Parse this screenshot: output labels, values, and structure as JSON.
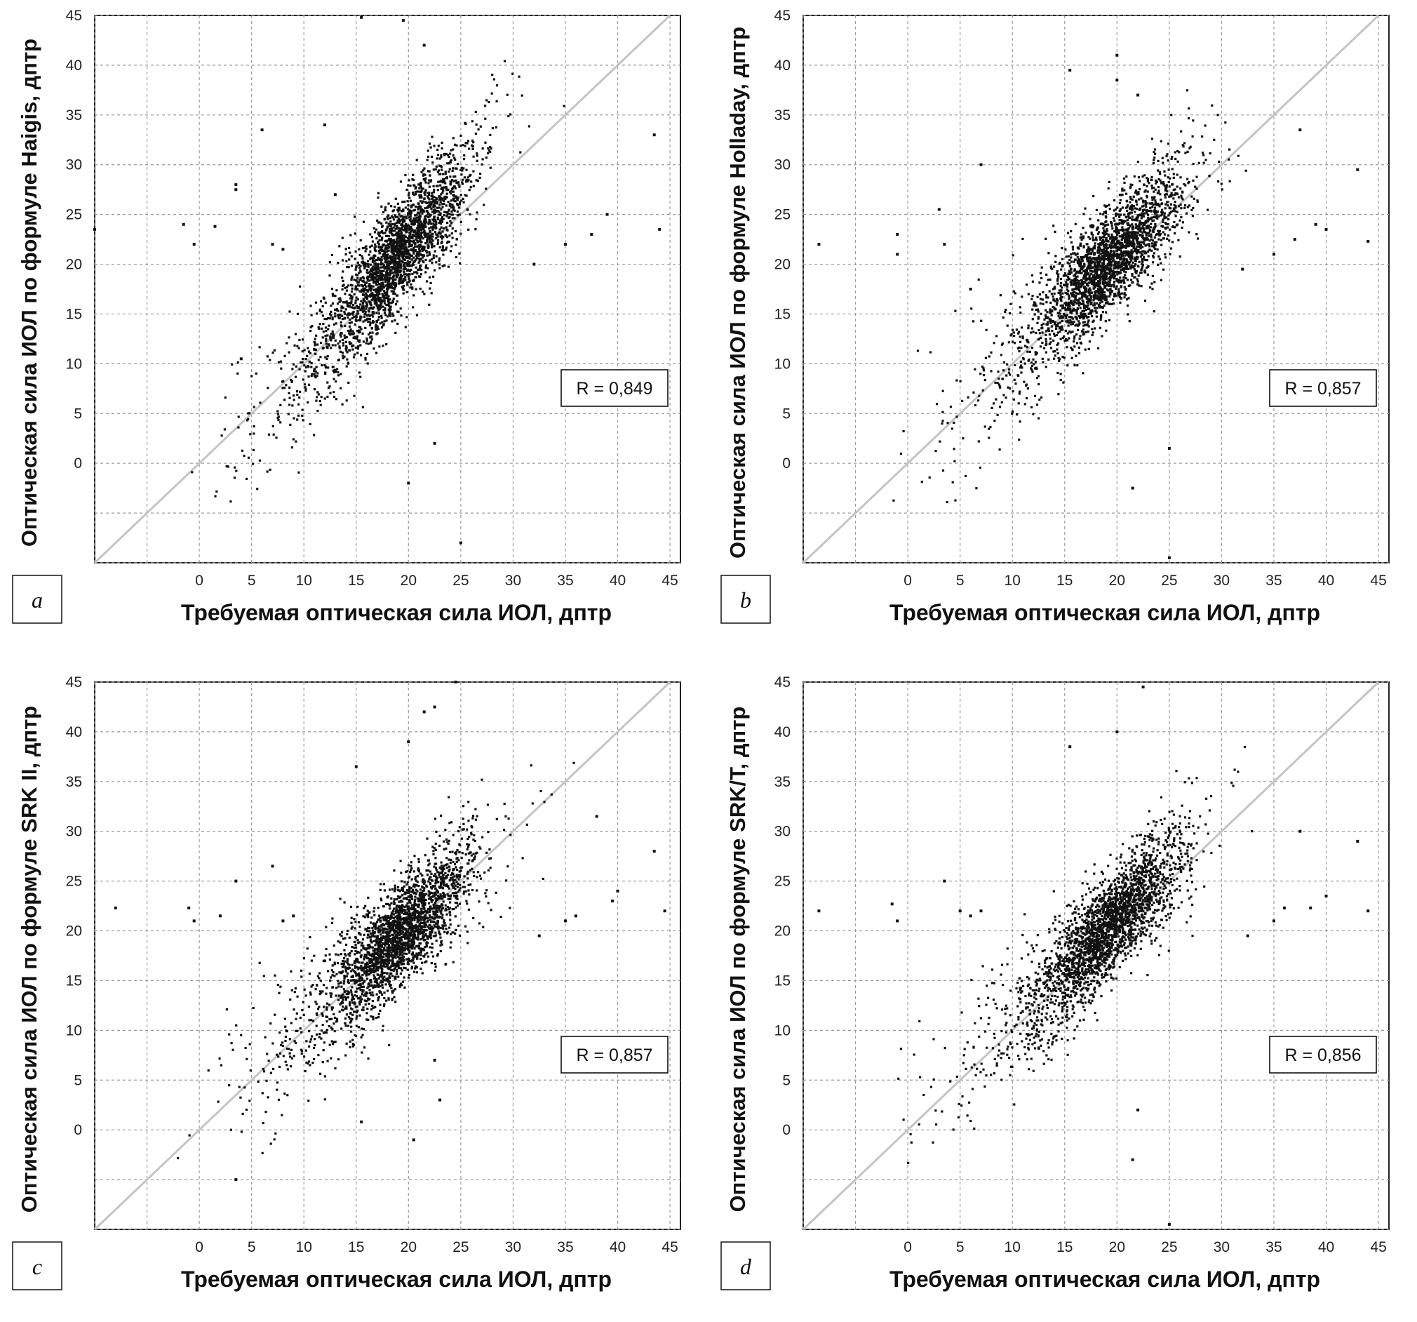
{
  "shared": {
    "xlabel": "Требуемая оптическая сила ИОЛ, дптр",
    "x_ticks": [
      "0",
      "5",
      "10",
      "15",
      "20",
      "25",
      "30",
      "35",
      "40",
      "45"
    ],
    "y_ticks": [
      "0",
      "5",
      "10",
      "15",
      "20",
      "25",
      "30",
      "35",
      "40",
      "45"
    ]
  },
  "chart_data": [
    {
      "type": "scatter",
      "panel_label": "a",
      "ylabel": "Оптическая сила ИОЛ по формуле Haigis, дптр",
      "xlabel": "Требуемая оптическая сила ИОЛ, дптр",
      "annotation": "R = 0,849",
      "r": 0.849,
      "xlim": [
        -10,
        46
      ],
      "ylim": [
        -10,
        45
      ],
      "identity_line": true,
      "grid": true,
      "cloud": {
        "x_center": 19.5,
        "y_center": 21.5,
        "slope": 1.25,
        "approx_points": 6000
      },
      "outliers": [
        [
          -1.5,
          24
        ],
        [
          -10,
          23.5
        ],
        [
          -0.5,
          22
        ],
        [
          1.5,
          23.8
        ],
        [
          3.5,
          28
        ],
        [
          3.5,
          27.5
        ],
        [
          4,
          10.5
        ],
        [
          6,
          33.5
        ],
        [
          7,
          22
        ],
        [
          8,
          21.5
        ],
        [
          12,
          34
        ],
        [
          13,
          27
        ],
        [
          15.5,
          44.8
        ],
        [
          19.5,
          44.5
        ],
        [
          21.5,
          42
        ],
        [
          22.5,
          2
        ],
        [
          20,
          -2
        ],
        [
          25,
          -8
        ],
        [
          35,
          22
        ],
        [
          37.5,
          23
        ],
        [
          39,
          25
        ],
        [
          43.5,
          33
        ],
        [
          44,
          23.5
        ],
        [
          32,
          20
        ]
      ]
    },
    {
      "type": "scatter",
      "panel_label": "b",
      "ylabel": "Оптическая сила ИОЛ по формуле Holladay, дптр",
      "xlabel": "Требуемая оптическая сила ИОЛ, дптр",
      "annotation": "R = 0,857",
      "r": 0.857,
      "xlim": [
        -10,
        46
      ],
      "ylim": [
        -10,
        45
      ],
      "identity_line": true,
      "grid": true,
      "cloud": {
        "x_center": 19.5,
        "y_center": 20.5,
        "slope": 1.05,
        "approx_points": 6000
      },
      "outliers": [
        [
          -8.5,
          22
        ],
        [
          -1,
          23
        ],
        [
          -1,
          21
        ],
        [
          3,
          25.5
        ],
        [
          3.5,
          22
        ],
        [
          6,
          17.5
        ],
        [
          7,
          30
        ],
        [
          15.5,
          39.5
        ],
        [
          20,
          41
        ],
        [
          20,
          38.5
        ],
        [
          22,
          37
        ],
        [
          25,
          -9.5
        ],
        [
          25,
          1.5
        ],
        [
          21.5,
          -2.5
        ],
        [
          35,
          21
        ],
        [
          37,
          22.5
        ],
        [
          39,
          24
        ],
        [
          40,
          23.5
        ],
        [
          43,
          29.5
        ],
        [
          44,
          22.3
        ],
        [
          37.5,
          33.5
        ],
        [
          32,
          19.5
        ]
      ]
    },
    {
      "type": "scatter",
      "panel_label": "c",
      "ylabel": "Оптическая сила ИОЛ по формуле SRK II, дптр",
      "xlabel": "Требуемая оптическая сила ИОЛ, дптр",
      "annotation": "R = 0,857",
      "r": 0.857,
      "xlim": [
        -10,
        46
      ],
      "ylim": [
        -10,
        45
      ],
      "identity_line": true,
      "grid": true,
      "cloud": {
        "x_center": 19.5,
        "y_center": 20.0,
        "slope": 1.0,
        "approx_points": 6000
      },
      "outliers": [
        [
          -8,
          22.3
        ],
        [
          -1,
          22.3
        ],
        [
          -0.5,
          21
        ],
        [
          2,
          21.5
        ],
        [
          3.5,
          25
        ],
        [
          7,
          26.5
        ],
        [
          8,
          21
        ],
        [
          9,
          21.5
        ],
        [
          15,
          36.5
        ],
        [
          20,
          39
        ],
        [
          21.5,
          42
        ],
        [
          22.5,
          42.5
        ],
        [
          24.5,
          45
        ],
        [
          22.5,
          7
        ],
        [
          23,
          3
        ],
        [
          20.5,
          -1
        ],
        [
          15.5,
          0.8
        ],
        [
          3.5,
          -5
        ],
        [
          35,
          21
        ],
        [
          36,
          21.5
        ],
        [
          38,
          31.5
        ],
        [
          39.5,
          23
        ],
        [
          40,
          24
        ],
        [
          43.5,
          28
        ],
        [
          44.5,
          22
        ],
        [
          32.5,
          19.5
        ]
      ]
    },
    {
      "type": "scatter",
      "panel_label": "d",
      "ylabel": "Оптическая сила ИОЛ по формуле SRK/T, дптр",
      "xlabel": "Требуемая оптическая сила ИОЛ, дптр",
      "annotation": "R = 0,856",
      "r": 0.856,
      "xlim": [
        -10,
        46
      ],
      "ylim": [
        -10,
        45
      ],
      "identity_line": true,
      "grid": true,
      "cloud": {
        "x_center": 19.5,
        "y_center": 20.5,
        "slope": 1.05,
        "approx_points": 6000
      },
      "outliers": [
        [
          -8.5,
          22
        ],
        [
          -1.5,
          22.7
        ],
        [
          -1,
          21
        ],
        [
          3.5,
          25
        ],
        [
          5,
          22
        ],
        [
          6,
          21.5
        ],
        [
          7,
          22
        ],
        [
          15.5,
          38.5
        ],
        [
          20,
          40
        ],
        [
          22.5,
          44.5
        ],
        [
          25,
          -9.5
        ],
        [
          22,
          2
        ],
        [
          21.5,
          -3
        ],
        [
          35,
          21
        ],
        [
          36,
          22.3
        ],
        [
          38.5,
          22.3
        ],
        [
          40,
          23.5
        ],
        [
          43,
          29
        ],
        [
          44,
          22
        ],
        [
          37.5,
          30
        ],
        [
          32.5,
          19.5
        ]
      ]
    }
  ]
}
